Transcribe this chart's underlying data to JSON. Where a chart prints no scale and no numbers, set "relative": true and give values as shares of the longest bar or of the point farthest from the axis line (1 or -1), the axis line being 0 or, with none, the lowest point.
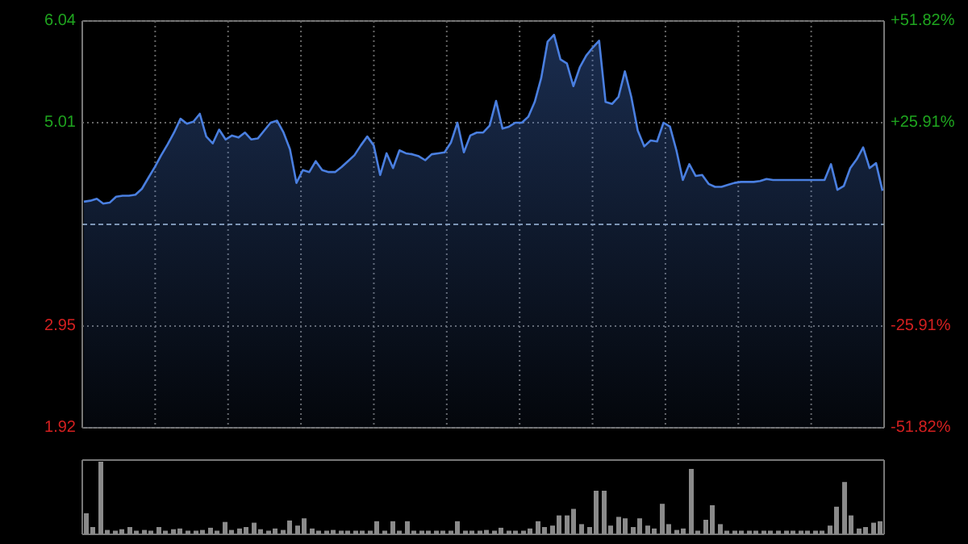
{
  "chart_data": [
    {
      "type": "area",
      "categories": [
        null,
        null,
        null,
        null,
        null,
        null,
        null,
        null,
        null,
        null,
        null,
        null,
        null,
        null,
        null,
        null,
        null,
        null,
        null,
        null,
        null,
        null,
        null,
        null,
        null,
        null,
        null,
        null,
        null,
        null,
        null,
        null,
        null,
        null,
        null,
        null,
        null,
        null,
        null,
        null,
        null,
        null,
        null,
        null,
        null,
        null,
        null,
        null,
        null,
        null,
        null,
        null,
        null,
        null,
        null,
        null,
        null,
        null,
        null,
        null,
        null,
        null,
        null,
        null,
        null,
        null,
        null,
        null,
        null,
        null,
        null,
        null,
        null,
        null,
        null,
        null,
        null,
        null,
        null,
        null,
        null,
        null,
        null,
        null,
        null,
        null,
        null,
        null,
        null,
        null,
        null,
        null,
        null,
        null,
        null,
        null,
        null,
        null,
        null,
        null,
        null,
        null,
        null,
        null,
        null,
        null,
        null,
        null,
        null,
        null,
        null,
        null,
        null,
        null,
        null,
        null,
        null,
        null,
        null,
        null,
        null,
        null,
        null,
        null,
        null
      ],
      "series": [
        {
          "color": "#4a7fe0",
          "values": [
            4.21,
            4.22,
            4.24,
            4.19,
            4.2,
            4.26,
            4.27,
            4.27,
            4.28,
            4.34,
            4.45,
            4.56,
            4.68,
            4.79,
            4.91,
            5.05,
            5.0,
            5.02,
            5.1,
            4.87,
            4.8,
            4.94,
            4.84,
            4.88,
            4.86,
            4.91,
            4.84,
            4.85,
            4.93,
            5.01,
            5.03,
            4.91,
            4.74,
            4.4,
            4.53,
            4.51,
            4.62,
            4.53,
            4.51,
            4.51,
            4.56,
            4.62,
            4.68,
            4.78,
            4.87,
            4.78,
            4.48,
            4.7,
            4.55,
            4.73,
            4.7,
            4.69,
            4.67,
            4.63,
            4.69,
            4.7,
            4.71,
            4.81,
            5.01,
            4.71,
            4.88,
            4.91,
            4.91,
            4.98,
            5.23,
            4.95,
            4.97,
            5.01,
            5.01,
            5.07,
            5.22,
            5.46,
            5.83,
            5.9,
            5.65,
            5.61,
            5.38,
            5.57,
            5.69,
            5.77,
            5.84,
            5.22,
            5.2,
            5.27,
            5.53,
            5.27,
            4.93,
            4.77,
            4.83,
            4.82,
            5.01,
            4.97,
            4.73,
            4.43,
            4.59,
            4.47,
            4.48,
            4.39,
            4.36,
            4.36,
            4.38,
            4.4,
            4.41,
            4.41,
            4.41,
            4.42,
            4.44,
            4.43,
            4.43,
            4.43,
            4.43,
            4.43,
            4.43,
            4.43,
            4.43,
            4.43,
            4.59,
            4.33,
            4.37,
            4.55,
            4.64,
            4.76,
            4.55,
            4.6,
            4.32
          ]
        }
      ],
      "ylim": [
        1.92,
        6.04
      ],
      "yticks": [
        1.92,
        2.95,
        5.01,
        6.04
      ],
      "ref_lines": [
        {
          "axis": "y",
          "value": 3.98,
          "color": "#8a9aaa",
          "line_style": "dashed"
        }
      ],
      "y2lim": [
        -51.82,
        51.82
      ],
      "y2ticks": [
        {
          "value": -51.82,
          "label": "-51.82%"
        },
        {
          "value": -25.91,
          "label": "-25.91%"
        },
        {
          "value": 25.91,
          "label": "+25.91%"
        },
        {
          "value": 51.82,
          "label": "+51.82%"
        }
      ],
      "grid": true
    },
    {
      "type": "bar",
      "relative": true,
      "categories": [
        null,
        null,
        null,
        null,
        null,
        null,
        null,
        null,
        null,
        null,
        null,
        null,
        null,
        null,
        null,
        null,
        null,
        null,
        null,
        null,
        null,
        null,
        null,
        null,
        null,
        null,
        null,
        null,
        null,
        null,
        null,
        null,
        null,
        null,
        null,
        null,
        null,
        null,
        null,
        null,
        null,
        null,
        null,
        null,
        null,
        null,
        null,
        null,
        null,
        null,
        null,
        null,
        null,
        null,
        null,
        null,
        null,
        null,
        null,
        null,
        null,
        null,
        null,
        null,
        null,
        null,
        null,
        null,
        null,
        null,
        null,
        null,
        null,
        null,
        null,
        null,
        null,
        null,
        null,
        null,
        null,
        null,
        null,
        null,
        null,
        null,
        null,
        null,
        null,
        null,
        null,
        null,
        null,
        null,
        null,
        null,
        null,
        null,
        null,
        null,
        null,
        null,
        null,
        null,
        null,
        null,
        null,
        null,
        null,
        null
      ],
      "color": "#8a8a8a",
      "values": [
        0.29,
        0.1,
        1.0,
        0.06,
        0.05,
        0.07,
        0.1,
        0.05,
        0.06,
        0.05,
        0.1,
        0.05,
        0.07,
        0.08,
        0.05,
        0.05,
        0.06,
        0.09,
        0.05,
        0.17,
        0.06,
        0.08,
        0.1,
        0.16,
        0.07,
        0.05,
        0.08,
        0.06,
        0.19,
        0.12,
        0.22,
        0.08,
        0.05,
        0.05,
        0.06,
        0.05,
        0.05,
        0.05,
        0.05,
        0.05,
        0.18,
        0.05,
        0.18,
        0.05,
        0.18,
        0.05,
        0.05,
        0.05,
        0.05,
        0.05,
        0.05,
        0.18,
        0.05,
        0.05,
        0.05,
        0.06,
        0.05,
        0.09,
        0.05,
        0.05,
        0.05,
        0.08,
        0.18,
        0.1,
        0.12,
        0.26,
        0.26,
        0.35,
        0.14,
        0.1,
        0.6,
        0.6,
        0.12,
        0.24,
        0.22,
        0.1,
        0.22,
        0.12,
        0.08,
        0.42,
        0.14,
        0.06,
        0.08,
        0.9,
        0.05,
        0.2,
        0.4,
        0.14,
        0.05,
        0.05,
        0.05,
        0.05,
        0.05,
        0.05,
        0.05,
        0.05,
        0.05,
        0.05,
        0.05,
        0.05,
        0.05,
        0.05,
        0.12,
        0.38,
        0.72,
        0.26,
        0.08,
        0.1,
        0.16,
        0.18
      ]
    }
  ]
}
